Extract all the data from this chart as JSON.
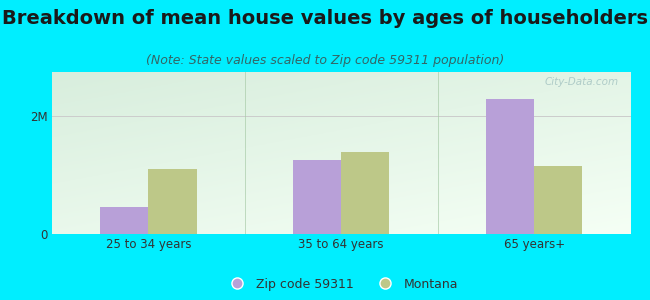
{
  "title": "Breakdown of mean house values by ages of householders",
  "subtitle": "(Note: State values scaled to Zip code 59311 population)",
  "categories": [
    "25 to 34 years",
    "35 to 64 years",
    "65 years+"
  ],
  "zip_values": [
    450000,
    1250000,
    2300000
  ],
  "state_values": [
    1100000,
    1400000,
    1150000
  ],
  "zip_color": "#b8a0d8",
  "state_color": "#bdc888",
  "background_color": "#00eeff",
  "yticks": [
    0,
    2000000
  ],
  "ytick_labels": [
    "0",
    "2M"
  ],
  "ylim": [
    0,
    2750000
  ],
  "bar_width": 0.25,
  "legend_zip": "Zip code 59311",
  "legend_state": "Montana",
  "title_fontsize": 14,
  "subtitle_fontsize": 9,
  "watermark": "City-Data.com"
}
